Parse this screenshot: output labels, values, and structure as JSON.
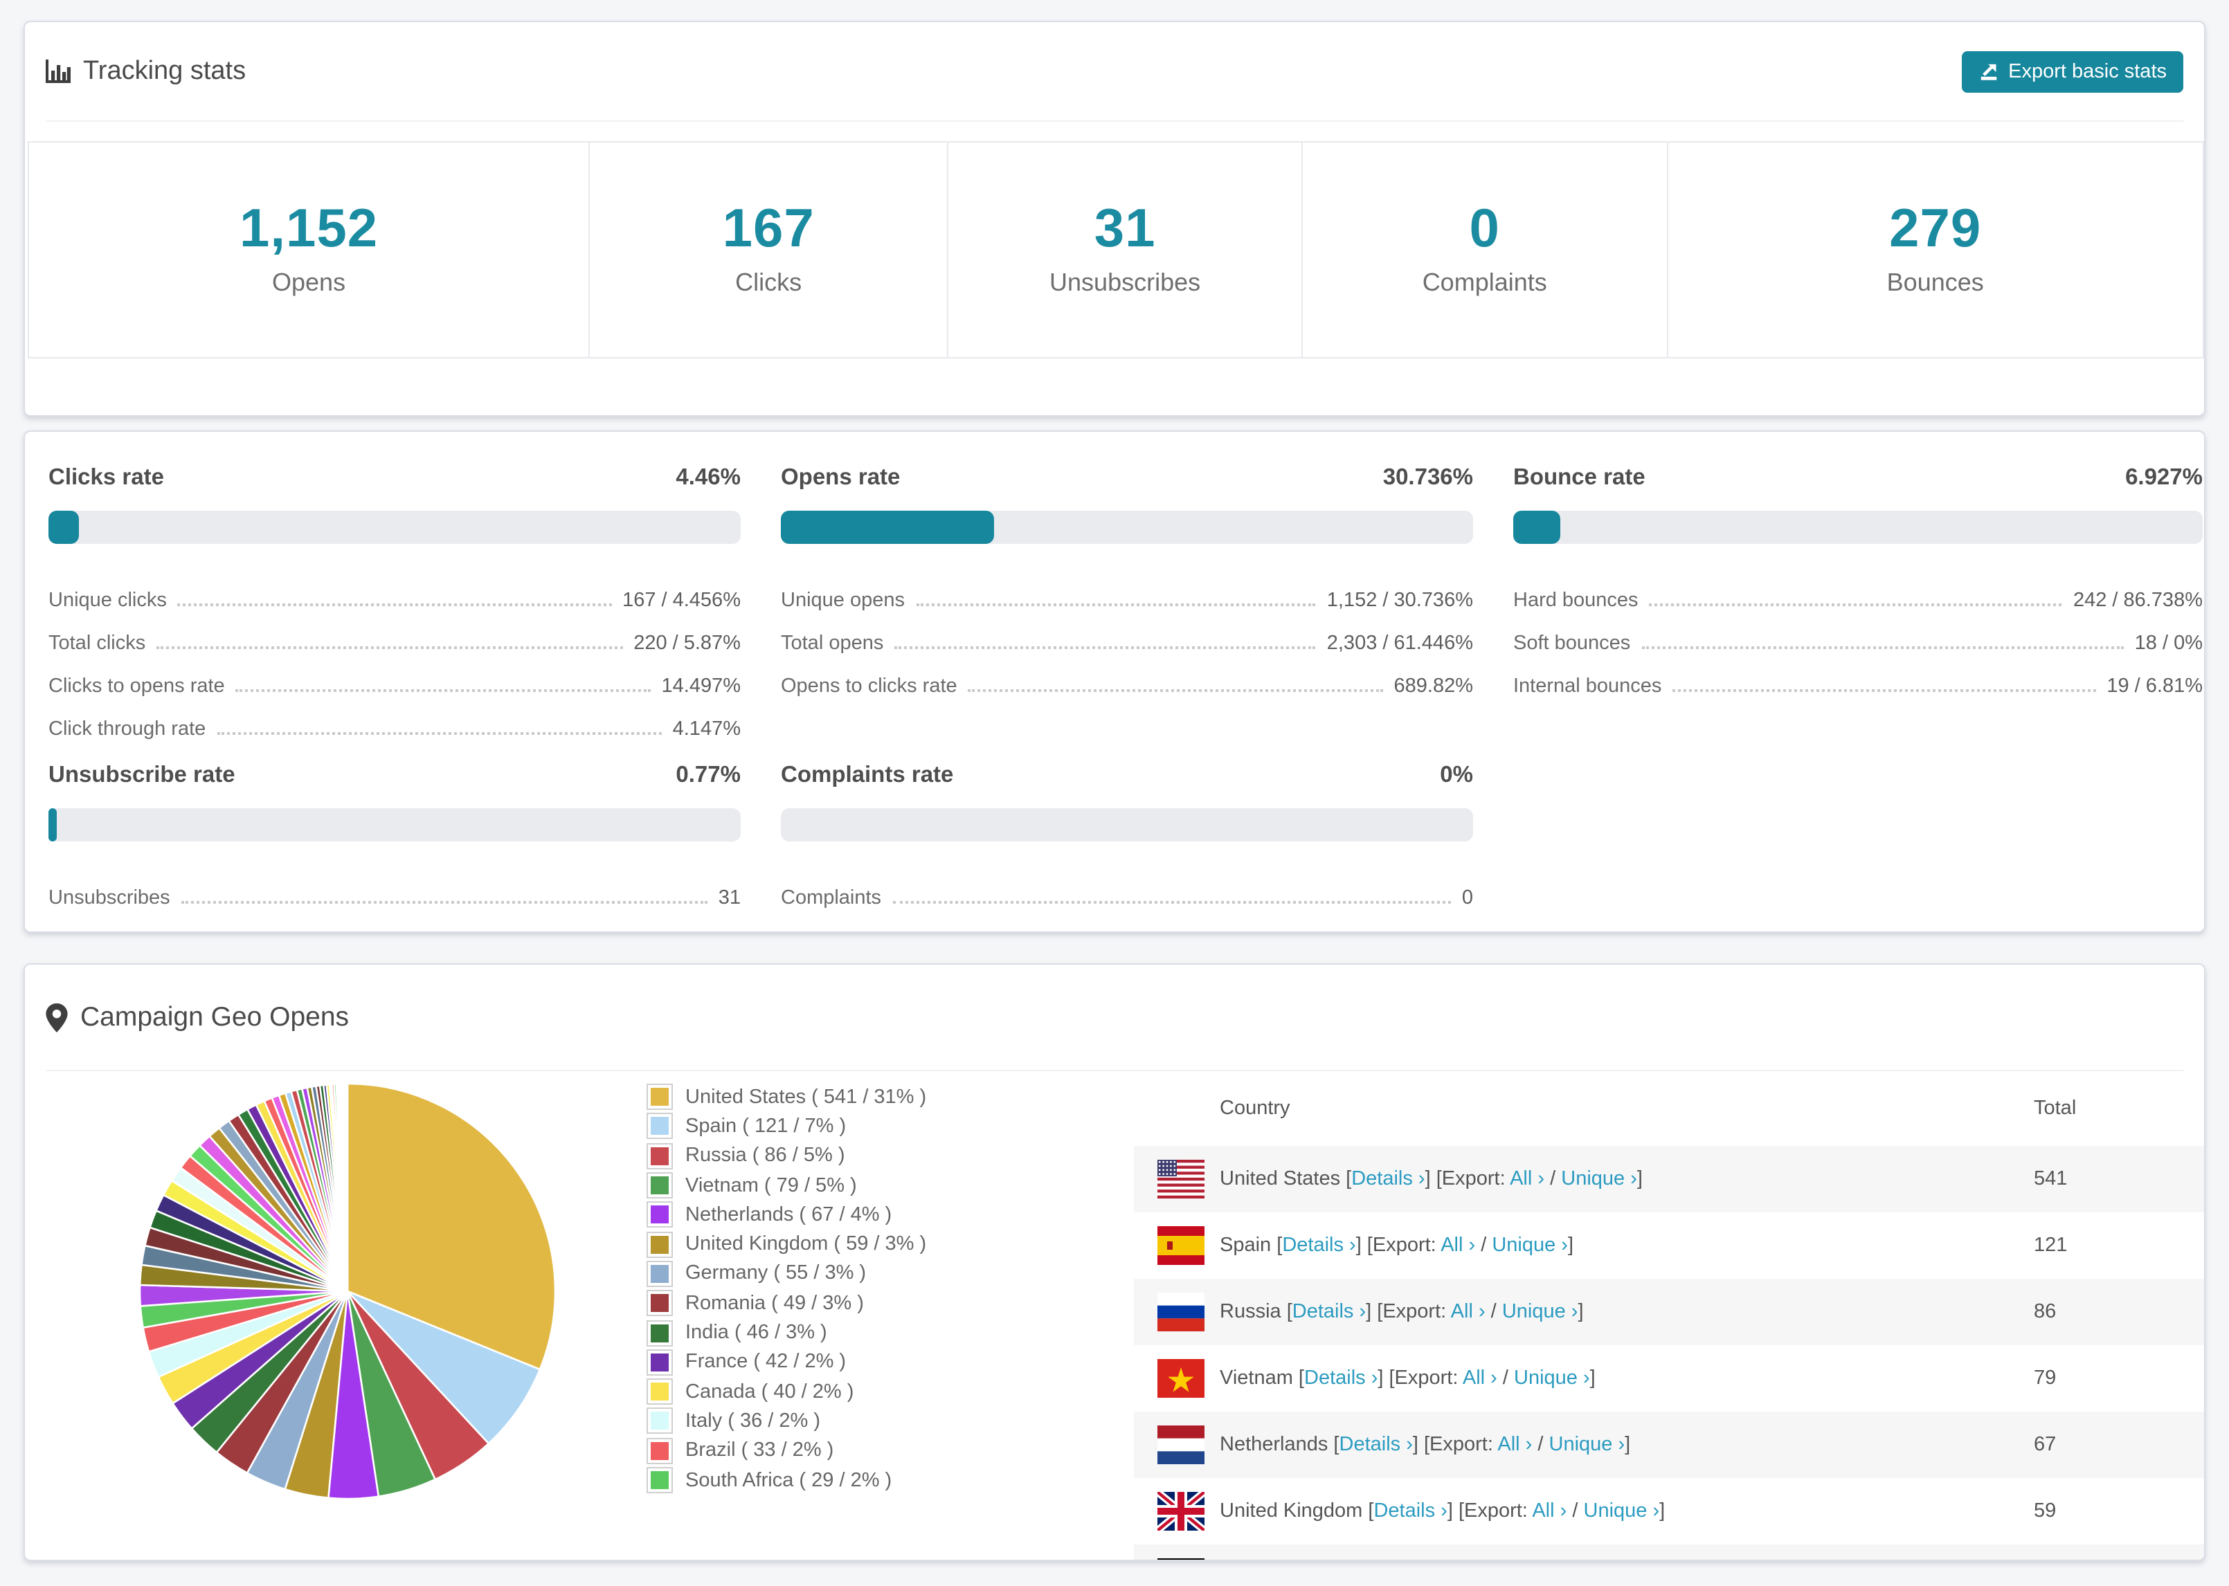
{
  "accent": "#17879d",
  "tracking": {
    "title": "Tracking stats",
    "export_label": "Export basic stats",
    "stats": [
      {
        "value": "1,152",
        "label": "Opens"
      },
      {
        "value": "167",
        "label": "Clicks"
      },
      {
        "value": "31",
        "label": "Unsubscribes"
      },
      {
        "value": "0",
        "label": "Complaints"
      },
      {
        "value": "279",
        "label": "Bounces"
      }
    ]
  },
  "rates": {
    "panels": [
      {
        "title": "Clicks rate",
        "value": "4.46%",
        "pct": 4.46,
        "rows": [
          {
            "label": "Unique clicks",
            "value": "167 / 4.456%"
          },
          {
            "label": "Total clicks",
            "value": "220 / 5.87%"
          },
          {
            "label": "Clicks to opens rate",
            "value": "14.497%"
          },
          {
            "label": "Click through rate",
            "value": "4.147%"
          }
        ]
      },
      {
        "title": "Opens rate",
        "value": "30.736%",
        "pct": 30.736,
        "rows": [
          {
            "label": "Unique opens",
            "value": "1,152 / 30.736%"
          },
          {
            "label": "Total opens",
            "value": "2,303 / 61.446%"
          },
          {
            "label": "Opens to clicks rate",
            "value": "689.82%"
          }
        ]
      },
      {
        "title": "Bounce rate",
        "value": "6.927%",
        "pct": 6.927,
        "rows": [
          {
            "label": "Hard bounces",
            "value": "242 / 86.738%"
          },
          {
            "label": "Soft bounces",
            "value": "18 / 0%"
          },
          {
            "label": "Internal bounces",
            "value": "19 / 6.81%"
          }
        ]
      },
      {
        "title": "Unsubscribe rate",
        "value": "0.77%",
        "pct": 0.77,
        "rows": [
          {
            "label": "Unsubscribes",
            "value": "31"
          }
        ]
      },
      {
        "title": "Complaints rate",
        "value": "0%",
        "pct": 0,
        "rows": [
          {
            "label": "Complaints",
            "value": "0"
          }
        ]
      }
    ]
  },
  "geo": {
    "title": "Campaign Geo Opens",
    "legend": [
      {
        "label": "United States ( 541 / 31% )",
        "color": "#e2b844"
      },
      {
        "label": "Spain ( 121 / 7% )",
        "color": "#afd7f4"
      },
      {
        "label": "Russia ( 86 / 5% )",
        "color": "#c8494f"
      },
      {
        "label": "Vietnam ( 79 / 5% )",
        "color": "#4fa253"
      },
      {
        "label": "Netherlands ( 67 / 4% )",
        "color": "#a238ee"
      },
      {
        "label": "United Kingdom ( 59 / 3% )",
        "color": "#b6952c"
      },
      {
        "label": "Germany ( 55 / 3% )",
        "color": "#8fadce"
      },
      {
        "label": "Romania ( 49 / 3% )",
        "color": "#9e3b3e"
      },
      {
        "label": "India ( 46 / 3% )",
        "color": "#35793b"
      },
      {
        "label": "France ( 42 / 2% )",
        "color": "#7031af"
      },
      {
        "label": "Canada ( 40 / 2% )",
        "color": "#fae14e"
      },
      {
        "label": "Italy ( 36 / 2% )",
        "color": "#d6fbfa"
      },
      {
        "label": "Brazil ( 33 / 2% )",
        "color": "#f05c5f"
      },
      {
        "label": "South Africa ( 29 / 2% )",
        "color": "#5bcb60"
      }
    ],
    "table": {
      "col_country": "Country",
      "col_total": "Total",
      "open_bracket": "[",
      "close_bracket": "]",
      "details_label": "Details ›",
      "export_prefix": "[Export:",
      "all_label": "All ›",
      "separator": "/",
      "unique_label": "Unique ›",
      "rows": [
        {
          "flag": "us",
          "country": "United States",
          "total": "541"
        },
        {
          "flag": "es",
          "country": "Spain",
          "total": "121"
        },
        {
          "flag": "ru",
          "country": "Russia",
          "total": "86"
        },
        {
          "flag": "vn",
          "country": "Vietnam",
          "total": "79"
        },
        {
          "flag": "nl",
          "country": "Netherlands",
          "total": "67"
        },
        {
          "flag": "gb",
          "country": "United Kingdom",
          "total": "59"
        },
        {
          "flag": "de",
          "country": "",
          "total": "",
          "partial": true
        }
      ]
    }
  },
  "chart_data": {
    "type": "pie",
    "title": "Campaign Geo Opens",
    "legend_position": "right",
    "start_angle_deg": -90,
    "direction": "clockwise",
    "labels": [
      "United States",
      "Spain",
      "Russia",
      "Vietnam",
      "Netherlands",
      "United Kingdom",
      "Germany",
      "Romania",
      "India",
      "France",
      "Canada",
      "Italy",
      "Brazil",
      "South Africa"
    ],
    "values": [
      541,
      121,
      86,
      79,
      67,
      59,
      55,
      49,
      46,
      42,
      40,
      36,
      33,
      29
    ],
    "percent_labels": [
      31,
      7,
      5,
      5,
      4,
      3,
      3,
      3,
      3,
      2,
      2,
      2,
      2,
      2
    ],
    "colors": [
      "#e2b844",
      "#afd7f4",
      "#c8494f",
      "#4fa253",
      "#a238ee",
      "#b6952c",
      "#8fadce",
      "#9e3b3e",
      "#35793b",
      "#7031af",
      "#fae14e",
      "#d6fbfa",
      "#f05c5f",
      "#5bcb60"
    ],
    "others_estimated": {
      "values": [
        28,
        27,
        26,
        25,
        24,
        23,
        22,
        21,
        20,
        19,
        18,
        17,
        16,
        15,
        14,
        13,
        12,
        11,
        10,
        9,
        8,
        8,
        7,
        7,
        6,
        6,
        5,
        5,
        4,
        4,
        3,
        3,
        3,
        2,
        2,
        2,
        2,
        1,
        1,
        1,
        1,
        1,
        1,
        1
      ],
      "colors": [
        "#ab47e8",
        "#8f7e22",
        "#607d96",
        "#7c3334",
        "#256b2f",
        "#3f2d7e",
        "#f7ef4e",
        "#e7fbfb",
        "#f66364",
        "#63d967",
        "#df5fe8",
        "#b6952f",
        "#8ca8c4",
        "#a13b3f",
        "#2f7d3b",
        "#6f2da8",
        "#f7e14d",
        "#f66364",
        "#e561e8",
        "#d9a928",
        "#a8d5f2",
        "#cc4b52",
        "#4ca553",
        "#ab47e8",
        "#8f7e22",
        "#607d96",
        "#7c3334",
        "#256b2f",
        "#3f2d7e",
        "#f7ef4e",
        "#e7fbfb",
        "#f66364",
        "#63d967",
        "#df5fe8",
        "#b6952f",
        "#8ca8c4",
        "#a13b3f",
        "#2f7d3b",
        "#6f2da8",
        "#f7e14d",
        "#a8d5f2",
        "#cc4b52",
        "#4ca553",
        "#ab47e8"
      ]
    }
  }
}
